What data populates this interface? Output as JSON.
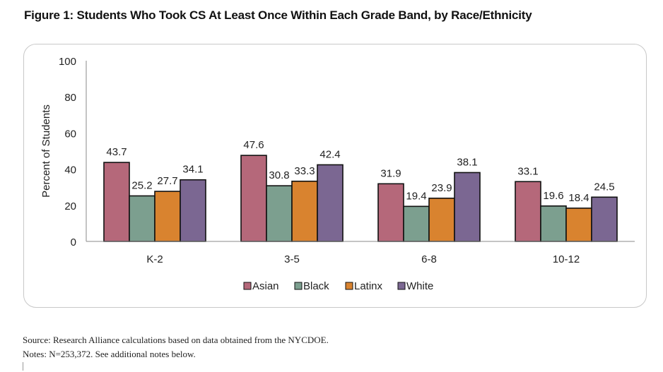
{
  "chart_data": {
    "type": "bar",
    "title": "Figure 1: Students Who Took CS At Least Once Within Each Grade Band, by Race/Ethnicity",
    "xlabel": "",
    "ylabel": "Percent of Students",
    "ylim": [
      0,
      100
    ],
    "yticks": [
      "0",
      "20",
      "40",
      "60",
      "80",
      "100"
    ],
    "categories": [
      "K-2",
      "3-5",
      "6-8",
      "10-12"
    ],
    "series": [
      {
        "name": "Asian",
        "color": "#b5687a",
        "values": [
          43.7,
          47.6,
          31.9,
          33.1
        ]
      },
      {
        "name": "Black",
        "color": "#7c9f8f",
        "values": [
          25.2,
          30.8,
          19.4,
          19.6
        ]
      },
      {
        "name": "Latinx",
        "color": "#d9832f",
        "values": [
          27.7,
          33.3,
          23.9,
          18.4
        ]
      },
      {
        "name": "White",
        "color": "#7b6792",
        "values": [
          34.1,
          42.4,
          38.1,
          24.5
        ]
      }
    ],
    "legend_position": "bottom",
    "grid": false
  },
  "footer": {
    "source": "Source: Research Alliance calculations based on data obtained from the NYCDOE.",
    "notes": "Notes: N=253,372. See additional notes below."
  }
}
